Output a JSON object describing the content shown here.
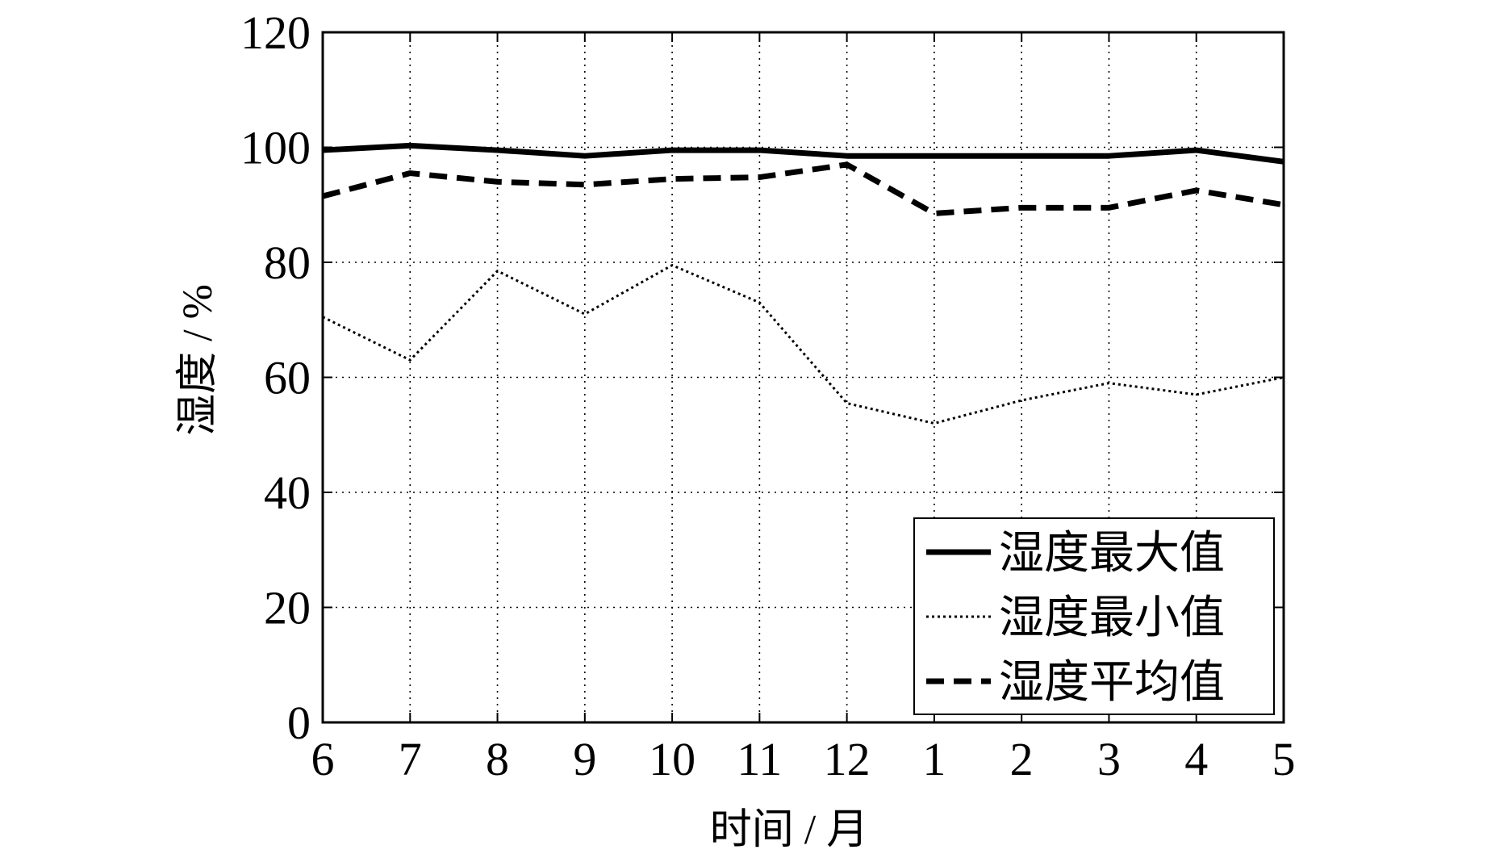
{
  "chart_data": {
    "type": "line",
    "xlabel": "时间 / 月",
    "ylabel": "湿度 / %",
    "categories": [
      "6",
      "7",
      "8",
      "9",
      "10",
      "11",
      "12",
      "1",
      "2",
      "3",
      "4",
      "5"
    ],
    "yticks": [
      "0",
      "20",
      "40",
      "60",
      "80",
      "100",
      "120"
    ],
    "ylim": [
      0,
      120
    ],
    "grid": true,
    "legend_position": "bottom-right",
    "series": [
      {
        "name": "湿度最大值",
        "style": "solid",
        "color": "#000000",
        "values": [
          99.5,
          100.3,
          99.5,
          98.5,
          99.5,
          99.5,
          98.5,
          98.5,
          98.5,
          98.5,
          99.5,
          97.5
        ]
      },
      {
        "name": "湿度最小值",
        "style": "dotted",
        "color": "#000000",
        "values": [
          70.5,
          63,
          78.5,
          71,
          79.5,
          73,
          55.5,
          52,
          56,
          59,
          57,
          60
        ]
      },
      {
        "name": "湿度平均值",
        "style": "dashed",
        "color": "#000000",
        "values": [
          91.5,
          95.5,
          94,
          93.5,
          94.5,
          94.8,
          97,
          88.5,
          89.5,
          89.5,
          92.5,
          90
        ]
      }
    ]
  }
}
